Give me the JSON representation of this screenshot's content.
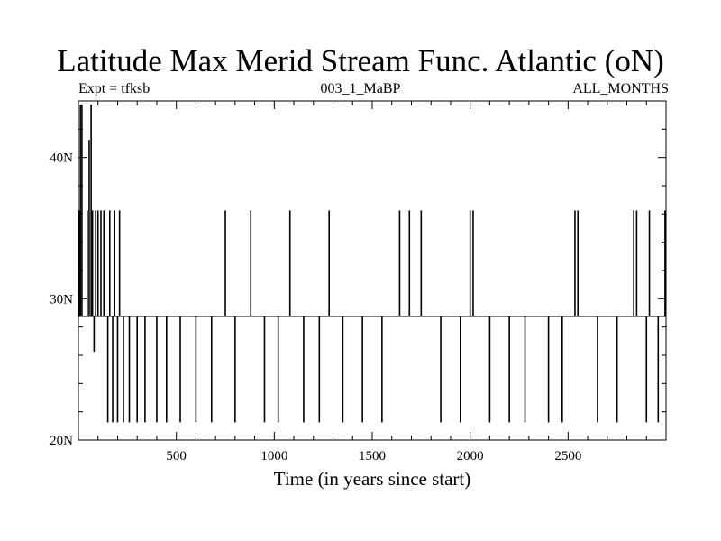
{
  "chart_data": {
    "type": "line",
    "title": "Latitude Max Merid Stream Func. Atlantic (oN)",
    "subtitle_left": "Expt = tfksb",
    "subtitle_center": "003_1_MaBP",
    "subtitle_right": "ALL_MONTHS",
    "xlabel": "Time (in years since start)",
    "ylabel": "",
    "xlim": [
      0,
      3000
    ],
    "ylim": [
      20,
      44
    ],
    "x_ticks": [
      500,
      1000,
      1500,
      2000,
      2500
    ],
    "x_tick_labels": [
      "500",
      "1000",
      "1500",
      "2000",
      "2500"
    ],
    "y_ticks": [
      20,
      30,
      40
    ],
    "y_tick_labels": [
      "20N",
      "30N",
      "40N"
    ],
    "baseline": 28.75,
    "levels": [
      21.25,
      28.75,
      36.25
    ],
    "series": [
      {
        "values": [
          {
            "x": 5,
            "y": 36.25
          },
          {
            "x": 10,
            "y": 43.75
          },
          {
            "x": 14,
            "y": 28.75
          },
          {
            "x": 18,
            "y": 43.75
          },
          {
            "x": 40,
            "y": 28.75
          },
          {
            "x": 45,
            "y": 36.25
          },
          {
            "x": 55,
            "y": 41.25
          },
          {
            "x": 60,
            "y": 28.75
          },
          {
            "x": 65,
            "y": 43.75
          },
          {
            "x": 72,
            "y": 36.25
          },
          {
            "x": 80,
            "y": 26.25
          },
          {
            "x": 88,
            "y": 36.25
          },
          {
            "x": 100,
            "y": 36.25
          },
          {
            "x": 115,
            "y": 36.25
          },
          {
            "x": 130,
            "y": 36.25
          },
          {
            "x": 150,
            "y": 21.25
          },
          {
            "x": 160,
            "y": 36.25
          },
          {
            "x": 175,
            "y": 21.25
          },
          {
            "x": 185,
            "y": 36.25
          },
          {
            "x": 200,
            "y": 21.25
          },
          {
            "x": 210,
            "y": 36.25
          },
          {
            "x": 230,
            "y": 21.25
          },
          {
            "x": 260,
            "y": 21.25
          },
          {
            "x": 300,
            "y": 21.25
          },
          {
            "x": 340,
            "y": 21.25
          },
          {
            "x": 400,
            "y": 21.25
          },
          {
            "x": 450,
            "y": 21.25
          },
          {
            "x": 520,
            "y": 21.25
          },
          {
            "x": 600,
            "y": 21.25
          },
          {
            "x": 680,
            "y": 21.25
          },
          {
            "x": 750,
            "y": 36.25
          },
          {
            "x": 800,
            "y": 21.25
          },
          {
            "x": 880,
            "y": 36.25
          },
          {
            "x": 950,
            "y": 21.25
          },
          {
            "x": 1020,
            "y": 21.25
          },
          {
            "x": 1080,
            "y": 36.25
          },
          {
            "x": 1150,
            "y": 21.25
          },
          {
            "x": 1230,
            "y": 21.25
          },
          {
            "x": 1280,
            "y": 36.25
          },
          {
            "x": 1350,
            "y": 21.25
          },
          {
            "x": 1450,
            "y": 21.25
          },
          {
            "x": 1550,
            "y": 21.25
          },
          {
            "x": 1640,
            "y": 36.25
          },
          {
            "x": 1690,
            "y": 36.25
          },
          {
            "x": 1750,
            "y": 36.25
          },
          {
            "x": 1850,
            "y": 21.25
          },
          {
            "x": 1950,
            "y": 21.25
          },
          {
            "x": 2000,
            "y": 36.25
          },
          {
            "x": 2015,
            "y": 36.25
          },
          {
            "x": 2100,
            "y": 21.25
          },
          {
            "x": 2200,
            "y": 21.25
          },
          {
            "x": 2280,
            "y": 21.25
          },
          {
            "x": 2400,
            "y": 21.25
          },
          {
            "x": 2470,
            "y": 21.25
          },
          {
            "x": 2535,
            "y": 36.25
          },
          {
            "x": 2550,
            "y": 36.25
          },
          {
            "x": 2650,
            "y": 21.25
          },
          {
            "x": 2750,
            "y": 21.25
          },
          {
            "x": 2835,
            "y": 36.25
          },
          {
            "x": 2850,
            "y": 36.25
          },
          {
            "x": 2900,
            "y": 21.25
          },
          {
            "x": 2915,
            "y": 36.25
          },
          {
            "x": 2960,
            "y": 21.25
          },
          {
            "x": 2995,
            "y": 36.25
          }
        ]
      }
    ],
    "grid": false,
    "colors": {
      "line": "#000000",
      "background": "#ffffff"
    }
  }
}
